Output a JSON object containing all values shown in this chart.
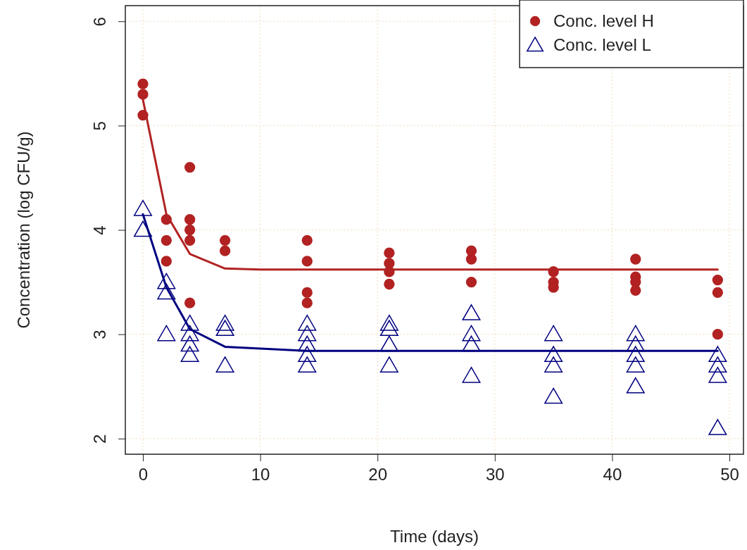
{
  "chart_data": {
    "type": "scatter",
    "xlabel": "Time (days)",
    "ylabel": "Concentration (log CFU/g)",
    "xlim": [
      -1.5,
      51.2
    ],
    "ylim": [
      1.85,
      6.15
    ],
    "xticks": [
      0,
      10,
      20,
      30,
      40,
      50
    ],
    "yticks": [
      2,
      3,
      4,
      5,
      6
    ],
    "grid": true,
    "legend": "top right",
    "series": [
      {
        "name": "Conc. level H",
        "marker": "circle",
        "color": "#b22222",
        "x": [
          0,
          0,
          0,
          2,
          2,
          2,
          4,
          4,
          4,
          4,
          4,
          7,
          7,
          14,
          14,
          14,
          14,
          21,
          21,
          21,
          21,
          28,
          28,
          28,
          35,
          35,
          35,
          42,
          42,
          42,
          42,
          49,
          49,
          49
        ],
        "values": [
          5.4,
          5.3,
          5.1,
          4.1,
          3.9,
          3.7,
          4.6,
          4.1,
          4.0,
          3.9,
          3.3,
          3.9,
          3.8,
          3.9,
          3.7,
          3.4,
          3.3,
          3.78,
          3.68,
          3.6,
          3.48,
          3.8,
          3.72,
          3.5,
          3.6,
          3.5,
          3.45,
          3.72,
          3.55,
          3.5,
          3.42,
          3.52,
          3.4,
          3.0
        ]
      },
      {
        "name": "Conc. level L",
        "marker": "triangle",
        "color": "#000080",
        "x": [
          0,
          0,
          2,
          2,
          2,
          4,
          4,
          4,
          4,
          7,
          7,
          7,
          14,
          14,
          14,
          14,
          14,
          21,
          21,
          21,
          21,
          28,
          28,
          28,
          28,
          35,
          35,
          35,
          35,
          42,
          42,
          42,
          42,
          42,
          49,
          49,
          49,
          49
        ],
        "values": [
          4.2,
          4.0,
          3.5,
          3.4,
          3.0,
          3.1,
          3.0,
          2.9,
          2.8,
          3.1,
          3.05,
          2.7,
          3.1,
          3.0,
          2.9,
          2.8,
          2.7,
          3.1,
          3.05,
          2.9,
          2.7,
          3.2,
          3.0,
          2.9,
          2.6,
          3.0,
          2.8,
          2.7,
          2.4,
          3.0,
          2.9,
          2.8,
          2.7,
          2.5,
          2.8,
          2.7,
          2.6,
          2.1
        ]
      },
      {
        "type": "line",
        "color": "#b22222",
        "x": [
          0,
          2,
          4,
          7,
          10,
          49
        ],
        "values": [
          5.25,
          4.15,
          3.77,
          3.63,
          3.62,
          3.62
        ]
      },
      {
        "type": "line",
        "color": "#000080",
        "x": [
          0,
          2,
          4,
          7,
          14,
          49
        ],
        "values": [
          4.15,
          3.45,
          3.05,
          2.88,
          2.84,
          2.84
        ]
      }
    ]
  }
}
